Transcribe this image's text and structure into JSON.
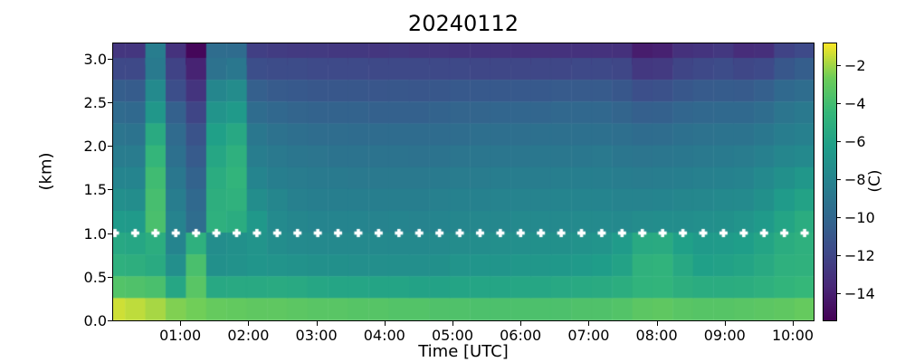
{
  "title": "20240112",
  "axes": {
    "xlabel": "Time [UTC]",
    "ylabel": "(km)",
    "x_tick_labels": [
      "01:00",
      "02:00",
      "03:00",
      "04:00",
      "05:00",
      "06:00",
      "07:00",
      "08:00",
      "09:00",
      "10:00"
    ],
    "x_tick_hours": [
      1,
      2,
      3,
      4,
      5,
      6,
      7,
      8,
      9,
      10
    ],
    "x_range_hours": [
      0,
      10.32
    ],
    "y_tick_labels": [
      "0.0",
      "0.5",
      "1.0",
      "1.5",
      "2.0",
      "2.5",
      "3.0"
    ],
    "y_tick_km": [
      0.0,
      0.5,
      1.0,
      1.5,
      2.0,
      2.5,
      3.0
    ],
    "y_range_km": [
      0,
      3.18
    ]
  },
  "colorbar": {
    "label": "(C)",
    "tick_labels": [
      "−2",
      "−4",
      "−6",
      "−8",
      "−10",
      "−12",
      "−14"
    ],
    "tick_values": [
      -2,
      -4,
      -6,
      -8,
      -10,
      -12,
      -14
    ],
    "vmin": -15.5,
    "vmax": -0.8,
    "colormap": "viridis"
  },
  "chart_data": {
    "type": "heatmap",
    "title": "20240112",
    "xlabel": "Time [UTC]",
    "ylabel": "(km)",
    "units": "C",
    "colormap": "viridis",
    "color_scale_range_c": [
      -15.5,
      -0.8
    ],
    "grid": false,
    "row_height_km": 0.25,
    "row_top_altitudes_km_top_to_bottom": [
      3.25,
      3.0,
      2.75,
      2.5,
      2.25,
      2.0,
      1.75,
      1.5,
      1.25,
      1.0,
      0.75,
      0.5,
      0.25
    ],
    "marker_line": {
      "altitude_km": 1.0,
      "marker": "filled-white-plus",
      "at_every_column": true
    },
    "column_times_utc": [
      "00:02",
      "00:20",
      "00:38",
      "00:56",
      "01:13",
      "01:31",
      "01:49",
      "02:07",
      "02:25",
      "02:43",
      "03:01",
      "03:18",
      "03:36",
      "03:54",
      "04:12",
      "04:30",
      "04:48",
      "05:06",
      "05:23",
      "05:41",
      "05:59",
      "06:17",
      "06:35",
      "06:53",
      "07:11",
      "07:28",
      "07:46",
      "08:04",
      "08:22",
      "08:40",
      "08:58",
      "09:16",
      "09:33",
      "09:51",
      "10:09"
    ],
    "columns_temp_c_top_to_bottom": [
      [
        -12.9,
        -11.9,
        -10.6,
        -9.8,
        -9.1,
        -8.6,
        -8.0,
        -7.3,
        -6.5,
        -5.6,
        -5.0,
        -3.5,
        -1.4
      ],
      [
        -12.9,
        -11.9,
        -10.7,
        -9.9,
        -9.2,
        -8.6,
        -8.0,
        -7.4,
        -6.6,
        -5.7,
        -5.1,
        -3.6,
        -1.6
      ],
      [
        -8.5,
        -8.7,
        -7.6,
        -6.8,
        -5.4,
        -4.6,
        -4.1,
        -3.9,
        -3.8,
        -5.2,
        -5.4,
        -3.8,
        -1.9
      ],
      [
        -13.1,
        -12.2,
        -11.6,
        -10.4,
        -9.8,
        -9.4,
        -8.9,
        -8.5,
        -8.1,
        -8.0,
        -7.3,
        -5.7,
        -2.4
      ],
      [
        -15.2,
        -13.9,
        -13.0,
        -12.1,
        -11.3,
        -10.8,
        -10.3,
        -9.9,
        -9.6,
        -5.0,
        -3.8,
        -3.3,
        -2.6
      ],
      [
        -9.6,
        -9.3,
        -7.9,
        -7.0,
        -6.2,
        -5.7,
        -5.3,
        -5.1,
        -5.0,
        -7.4,
        -7.2,
        -5.6,
        -2.9
      ],
      [
        -9.7,
        -8.9,
        -7.5,
        -6.6,
        -5.6,
        -5.0,
        -4.7,
        -4.9,
        -5.3,
        -7.2,
        -7.1,
        -5.5,
        -3.0
      ],
      [
        -12.4,
        -11.6,
        -10.5,
        -9.7,
        -8.9,
        -8.5,
        -8.0,
        -7.4,
        -6.7,
        -7.0,
        -6.9,
        -5.5,
        -3.1
      ],
      [
        -12.6,
        -11.7,
        -10.8,
        -10.0,
        -9.3,
        -8.8,
        -8.4,
        -7.9,
        -7.6,
        -7.4,
        -7.0,
        -5.4,
        -3.1
      ],
      [
        -12.7,
        -11.7,
        -10.9,
        -10.2,
        -9.5,
        -9.0,
        -8.6,
        -8.3,
        -7.9,
        -7.6,
        -7.1,
        -5.5,
        -3.2
      ],
      [
        -12.7,
        -11.8,
        -11.0,
        -10.3,
        -9.6,
        -9.1,
        -8.7,
        -8.4,
        -8.0,
        -7.7,
        -7.2,
        -5.7,
        -3.3
      ],
      [
        -12.8,
        -11.8,
        -11.0,
        -10.3,
        -9.6,
        -9.2,
        -8.7,
        -8.4,
        -8.0,
        -7.7,
        -7.2,
        -5.8,
        -3.3
      ],
      [
        -12.8,
        -11.8,
        -11.0,
        -10.3,
        -9.7,
        -9.2,
        -8.8,
        -8.4,
        -8.0,
        -7.7,
        -7.3,
        -5.8,
        -3.4
      ],
      [
        -12.9,
        -11.9,
        -11.1,
        -10.4,
        -9.7,
        -9.2,
        -8.8,
        -8.4,
        -8.1,
        -7.7,
        -7.3,
        -5.9,
        -3.4
      ],
      [
        -12.8,
        -11.9,
        -11.0,
        -10.4,
        -9.7,
        -9.2,
        -8.8,
        -8.4,
        -8.0,
        -7.7,
        -7.3,
        -5.9,
        -3.5
      ],
      [
        -12.9,
        -11.9,
        -11.1,
        -10.4,
        -9.7,
        -9.3,
        -8.8,
        -8.4,
        -8.1,
        -7.7,
        -7.3,
        -6.0,
        -3.5
      ],
      [
        -12.9,
        -11.9,
        -11.0,
        -10.3,
        -9.7,
        -9.2,
        -8.7,
        -8.3,
        -8.0,
        -7.6,
        -7.2,
        -6.0,
        -3.6
      ],
      [
        -13.0,
        -11.9,
        -10.9,
        -10.2,
        -9.6,
        -9.1,
        -8.6,
        -8.2,
        -7.9,
        -7.5,
        -7.0,
        -5.9,
        -3.6
      ],
      [
        -13.0,
        -12.0,
        -10.9,
        -10.2,
        -9.5,
        -9.0,
        -8.6,
        -8.2,
        -7.8,
        -7.4,
        -6.9,
        -5.8,
        -3.7
      ],
      [
        -13.0,
        -12.0,
        -10.9,
        -10.1,
        -9.5,
        -9.0,
        -8.5,
        -8.1,
        -7.8,
        -7.3,
        -6.9,
        -5.8,
        -3.7
      ],
      [
        -13.1,
        -12.0,
        -10.9,
        -10.1,
        -9.5,
        -9.0,
        -8.5,
        -8.1,
        -7.7,
        -7.3,
        -6.8,
        -5.7,
        -3.7
      ],
      [
        -13.1,
        -12.0,
        -10.9,
        -10.1,
        -9.4,
        -8.9,
        -8.5,
        -8.1,
        -7.7,
        -7.2,
        -6.8,
        -5.7,
        -3.7
      ],
      [
        -13.1,
        -12.0,
        -10.8,
        -10.0,
        -9.4,
        -8.9,
        -8.4,
        -8.0,
        -7.7,
        -7.2,
        -6.7,
        -5.6,
        -3.7
      ],
      [
        -13.1,
        -11.9,
        -10.8,
        -10.0,
        -9.4,
        -8.9,
        -8.4,
        -8.0,
        -7.6,
        -7.1,
        -6.6,
        -5.5,
        -3.6
      ],
      [
        -13.1,
        -11.9,
        -10.8,
        -10.0,
        -9.4,
        -8.8,
        -8.4,
        -8.0,
        -7.6,
        -7.0,
        -6.4,
        -5.4,
        -3.6
      ],
      [
        -13.2,
        -12.0,
        -11.0,
        -10.2,
        -9.5,
        -9.0,
        -8.5,
        -8.1,
        -7.7,
        -6.5,
        -6.0,
        -5.2,
        -3.5
      ],
      [
        -14.2,
        -12.8,
        -11.5,
        -10.5,
        -9.7,
        -9.1,
        -8.6,
        -8.1,
        -7.5,
        -5.5,
        -4.9,
        -4.8,
        -3.2
      ],
      [
        -14.0,
        -12.7,
        -11.4,
        -10.4,
        -9.6,
        -9.0,
        -8.5,
        -8.0,
        -7.4,
        -5.4,
        -4.8,
        -4.7,
        -3.1
      ],
      [
        -13.2,
        -12.1,
        -11.0,
        -10.1,
        -9.4,
        -8.9,
        -8.4,
        -7.9,
        -7.4,
        -6.2,
        -5.6,
        -5.1,
        -3.3
      ],
      [
        -13.0,
        -11.9,
        -10.8,
        -10.0,
        -9.3,
        -8.8,
        -8.3,
        -7.8,
        -7.3,
        -6.6,
        -6.2,
        -5.3,
        -3.4
      ],
      [
        -12.8,
        -11.7,
        -10.7,
        -9.9,
        -9.2,
        -8.7,
        -8.2,
        -7.7,
        -7.2,
        -6.5,
        -6.1,
        -5.3,
        -3.4
      ],
      [
        -13.4,
        -12.0,
        -10.8,
        -9.9,
        -9.2,
        -8.6,
        -8.1,
        -7.6,
        -7.0,
        -6.3,
        -5.9,
        -5.2,
        -3.3
      ],
      [
        -13.3,
        -11.8,
        -10.5,
        -9.6,
        -8.9,
        -8.3,
        -7.7,
        -7.2,
        -6.6,
        -5.9,
        -5.5,
        -5.0,
        -3.2
      ],
      [
        -12.2,
        -11.0,
        -9.9,
        -9.1,
        -8.5,
        -7.9,
        -7.2,
        -6.5,
        -5.9,
        -5.3,
        -5.0,
        -4.7,
        -3.1
      ],
      [
        -11.8,
        -10.6,
        -9.6,
        -8.8,
        -8.3,
        -7.7,
        -6.8,
        -6.0,
        -5.3,
        -5.0,
        -4.9,
        -4.5,
        -2.9
      ]
    ]
  }
}
